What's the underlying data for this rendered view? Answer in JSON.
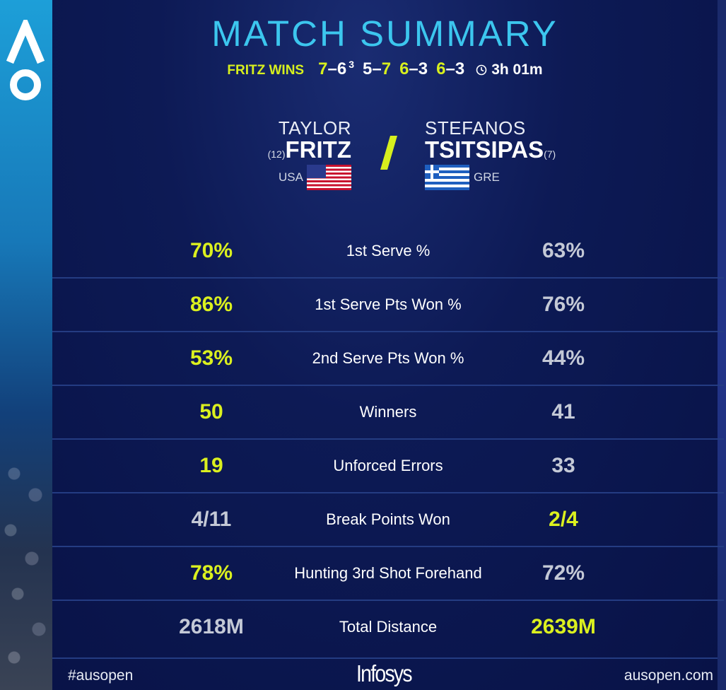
{
  "title": "MATCH SUMMARY",
  "result": {
    "winner_text": "FRITZ WINS",
    "sets": [
      {
        "a": "7",
        "b": "6",
        "tiebreak": "3"
      },
      {
        "a": "5",
        "b": "7",
        "tiebreak": ""
      },
      {
        "a": "6",
        "b": "3",
        "tiebreak": ""
      },
      {
        "a": "6",
        "b": "3",
        "tiebreak": ""
      }
    ],
    "set_separator": "–",
    "duration": "3h 01m",
    "duration_icon": "clock-icon"
  },
  "players": {
    "left": {
      "first": "TAYLOR",
      "last": "FRITZ",
      "seed": "(12)",
      "country": "USA",
      "flag": "usa-flag"
    },
    "right": {
      "first": "STEFANOS",
      "last": "TSITSIPAS",
      "seed": "(7)",
      "country": "GRE",
      "flag": "greece-flag"
    }
  },
  "stats": [
    {
      "label": "1st Serve %",
      "left": "70%",
      "right": "63%",
      "leader": "left"
    },
    {
      "label": "1st Serve Pts Won %",
      "left": "86%",
      "right": "76%",
      "leader": "left"
    },
    {
      "label": "2nd Serve Pts Won %",
      "left": "53%",
      "right": "44%",
      "leader": "left"
    },
    {
      "label": "Winners",
      "left": "50",
      "right": "41",
      "leader": "left"
    },
    {
      "label": "Unforced Errors",
      "left": "19",
      "right": "33",
      "leader": "left"
    },
    {
      "label": "Break Points Won",
      "left": "4/11",
      "right": "2/4",
      "leader": "right"
    },
    {
      "label": "Hunting 3rd Shot Forehand",
      "left": "78%",
      "right": "72%",
      "leader": "left"
    },
    {
      "label": "Total Distance",
      "left": "2618M",
      "right": "2639M",
      "leader": "right"
    }
  ],
  "footer": {
    "hashtag": "#ausopen",
    "sponsor": "Infosys",
    "site": "ausopen.com"
  },
  "brand": {
    "logo": "australian-open-logo"
  },
  "colors": {
    "highlight": "#dbf01f",
    "dim": "#c4c9d6",
    "title": "#3cc6ee",
    "background": "#0d1a55"
  }
}
